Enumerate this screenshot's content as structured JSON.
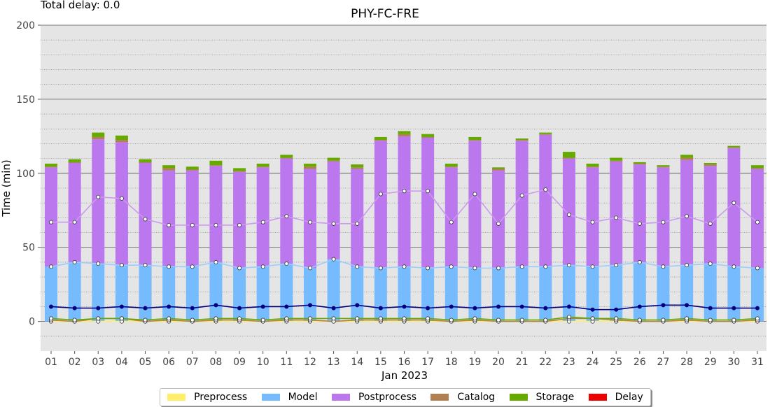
{
  "header": {
    "total_delay": "Total delay: 0.0"
  },
  "chart_data": {
    "type": "bar",
    "title": "PHY-FC-FRE",
    "xlabel": "Jan 2023",
    "ylabel": "Time (min)",
    "ylim": [
      -20,
      200
    ],
    "yticks": [
      0,
      50,
      100,
      150,
      200
    ],
    "grid": true,
    "legend_position": "bottom",
    "categories": [
      "01",
      "02",
      "03",
      "04",
      "05",
      "06",
      "07",
      "08",
      "09",
      "10",
      "11",
      "12",
      "13",
      "14",
      "15",
      "16",
      "17",
      "18",
      "19",
      "20",
      "21",
      "22",
      "23",
      "24",
      "25",
      "26",
      "27",
      "28",
      "29",
      "30",
      "31"
    ],
    "series": [
      {
        "name": "Preprocess",
        "color": "#ffee66",
        "values": [
          0,
          0,
          0,
          0,
          0,
          0,
          0,
          0,
          0,
          0,
          0,
          0,
          0,
          0,
          0,
          0,
          0,
          0,
          0,
          0,
          0,
          0,
          0,
          0,
          0,
          0,
          0,
          0,
          0,
          0,
          0
        ]
      },
      {
        "name": "Model",
        "color": "#77bbff",
        "values": [
          37,
          40,
          39,
          38,
          38,
          37,
          37,
          40,
          36,
          37,
          39,
          36,
          42,
          37,
          36,
          37,
          36,
          37,
          36,
          36,
          37,
          37,
          38,
          37,
          38,
          40,
          37,
          38,
          39,
          37,
          36
        ]
      },
      {
        "name": "Postprocess",
        "color": "#bb77ee",
        "values": [
          67,
          67,
          84,
          83,
          69,
          65,
          65,
          65,
          65,
          67,
          71,
          67,
          66,
          66,
          86,
          88,
          88,
          67,
          86,
          66,
          85,
          89,
          72,
          67,
          70,
          66,
          67,
          71,
          66,
          80,
          67
        ]
      },
      {
        "name": "Catalog",
        "color": "#b08050",
        "values": [
          0.5,
          0.5,
          1.5,
          1.5,
          0.5,
          1.5,
          0.5,
          0.5,
          0.5,
          0.5,
          0.5,
          1.5,
          0.5,
          1,
          0.5,
          1.5,
          0.5,
          0.5,
          0.5,
          1,
          0.5,
          0.5,
          0.5,
          0.5,
          0.5,
          0.5,
          0.5,
          1.5,
          1,
          0.5,
          0.5
        ]
      },
      {
        "name": "Storage",
        "color": "#66aa00",
        "values": [
          2,
          2,
          3,
          3,
          2,
          2,
          2,
          3,
          2,
          2,
          2,
          2,
          2,
          2,
          2,
          2,
          2,
          2,
          2,
          1,
          1,
          1,
          4,
          2,
          2,
          1,
          1,
          2,
          1,
          1,
          2
        ]
      },
      {
        "name": "Delay",
        "color": "#ee0000",
        "values": [
          0,
          0,
          0,
          0,
          0,
          0,
          0,
          0,
          0,
          0,
          0,
          0,
          0,
          0,
          0,
          0,
          0,
          0,
          0,
          0,
          0,
          0,
          0,
          0,
          0,
          0,
          0,
          0,
          0,
          0,
          0
        ]
      }
    ],
    "lines": [
      {
        "color": "#ffee66",
        "values": [
          0,
          0,
          0,
          0,
          0,
          0,
          0,
          0,
          0,
          0,
          0,
          0,
          0,
          0,
          0,
          0,
          0,
          0,
          0,
          0,
          0,
          0,
          0,
          0,
          0,
          0,
          0,
          0,
          0,
          0,
          0
        ]
      },
      {
        "color": "#99ccff",
        "values": [
          37,
          40,
          39,
          38,
          38,
          37,
          37,
          40,
          36,
          37,
          39,
          36,
          42,
          37,
          36,
          37,
          36,
          37,
          36,
          36,
          37,
          37,
          38,
          37,
          38,
          40,
          37,
          38,
          39,
          37,
          36
        ]
      },
      {
        "color": "#cc99ee",
        "values": [
          67,
          67,
          84,
          83,
          69,
          65,
          65,
          65,
          65,
          67,
          71,
          67,
          66,
          66,
          86,
          88,
          88,
          67,
          86,
          66,
          85,
          89,
          72,
          67,
          70,
          66,
          67,
          71,
          66,
          80,
          67
        ]
      },
      {
        "color": "#b08050",
        "values": [
          1,
          0,
          2,
          2,
          0,
          1,
          0,
          1,
          1,
          0,
          1,
          1,
          0,
          1,
          1,
          1,
          1,
          0,
          1,
          0,
          0,
          0,
          2,
          2,
          1,
          0,
          0,
          1,
          0,
          0,
          1
        ]
      },
      {
        "color": "#66aa00",
        "values": [
          2,
          1,
          2,
          2,
          1,
          2,
          1,
          2,
          2,
          1,
          2,
          2,
          2,
          2,
          2,
          2,
          2,
          1,
          2,
          1,
          1,
          1,
          3,
          2,
          2,
          1,
          1,
          2,
          1,
          1,
          2
        ]
      },
      {
        "color": "#000080",
        "values": [
          10,
          9,
          9,
          10,
          9,
          10,
          9,
          11,
          9,
          10,
          10,
          11,
          9,
          11,
          9,
          10,
          9,
          10,
          9,
          10,
          10,
          9,
          10,
          8,
          8,
          10,
          11,
          11,
          9,
          9,
          9
        ]
      }
    ]
  }
}
